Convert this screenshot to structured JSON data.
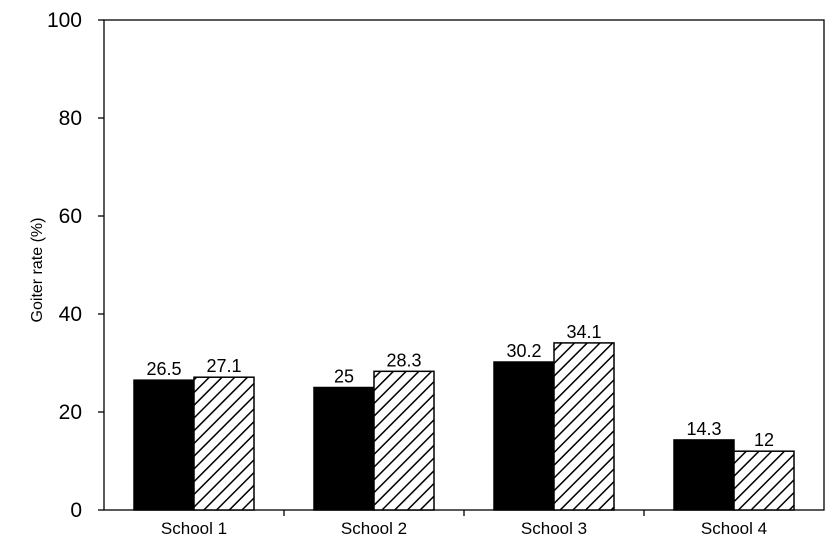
{
  "chart_data": {
    "type": "bar",
    "categories": [
      "School 1",
      "School 2",
      "School 3",
      "School 4"
    ],
    "series": [
      {
        "fill": "solid",
        "color": "#000000",
        "values": [
          26.5,
          25,
          30.2,
          14.3
        ],
        "labels": [
          "26.5",
          "25",
          "30.2",
          "14.3"
        ]
      },
      {
        "fill": "hatched",
        "color": "#ffffff",
        "values": [
          27.1,
          28.3,
          34.1,
          12
        ],
        "labels": [
          "27.1",
          "28.3",
          "34.1",
          "12"
        ]
      }
    ],
    "ylabel": "Goiter rate (%)",
    "xlabel": "",
    "title": "",
    "ylim": [
      0,
      100
    ],
    "yticks": [
      0,
      20,
      40,
      60,
      80,
      100
    ],
    "ytick_labels": [
      "0",
      "20",
      "40",
      "60",
      "80",
      "100"
    ],
    "grid": false,
    "legend": "none"
  }
}
